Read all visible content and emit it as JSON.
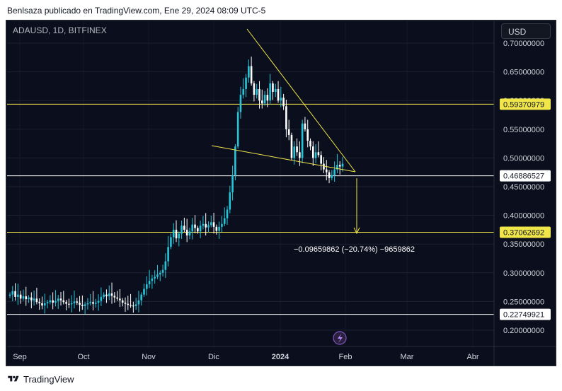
{
  "header": {
    "text": "Benlsaza publicado en TradingView.com, Ene 29, 2024 08:09 UTC-5"
  },
  "symbol": {
    "text": "ADAUSD, 1D, BITFINEX"
  },
  "currency_button": {
    "label": "USD"
  },
  "footer": {
    "brand": "TradingView"
  },
  "measure": {
    "label": "−0.09659862 (−20.74%) −9659862"
  },
  "colors": {
    "up": "#26c6da",
    "down": "#ffffff",
    "line": "#f0e64a",
    "bg": "#0b0e1c"
  },
  "chart_data": {
    "type": "candlestick",
    "title": "ADAUSD, 1D, BITFINEX",
    "ylim": [
      0.18,
      0.72
    ],
    "y_ticks": [
      "0.70000000",
      "0.65000000",
      "0.60000000",
      "0.55000000",
      "0.50000000",
      "0.45000000",
      "0.40000000",
      "0.35000000",
      "0.30000000",
      "0.25000000",
      "0.20000000"
    ],
    "x_ticks": [
      "Sep",
      "Oct",
      "Nov",
      "Dic",
      "2024",
      "Feb",
      "Mar",
      "Abr"
    ],
    "price_lines": [
      {
        "label": "0.59370979",
        "value": 0.5937,
        "color": "#f0e64a",
        "box": "yellow"
      },
      {
        "label": "0.46886527",
        "value": 0.4689,
        "color": "#ffffff",
        "box": "white"
      },
      {
        "label": "0.37062692",
        "value": 0.3706,
        "color": "#f0e64a",
        "box": "yellow"
      },
      {
        "label": "0.22749921",
        "value": 0.2275,
        "color": "#ffffff",
        "box": "white"
      }
    ],
    "closes": [
      0.262,
      0.268,
      0.258,
      0.262,
      0.255,
      0.259,
      0.254,
      0.257,
      0.252,
      0.255,
      0.249,
      0.247,
      0.243,
      0.247,
      0.249,
      0.252,
      0.248,
      0.251,
      0.255,
      0.252,
      0.249,
      0.246,
      0.245,
      0.247,
      0.25,
      0.248,
      0.244,
      0.242,
      0.245,
      0.247,
      0.249,
      0.246,
      0.248,
      0.251,
      0.258,
      0.262,
      0.259,
      0.264,
      0.26,
      0.257,
      0.255,
      0.252,
      0.248,
      0.246,
      0.244,
      0.243,
      0.242,
      0.245,
      0.252,
      0.262,
      0.272,
      0.28,
      0.286,
      0.29,
      0.293,
      0.297,
      0.3,
      0.305,
      0.32,
      0.345,
      0.362,
      0.375,
      0.36,
      0.368,
      0.382,
      0.375,
      0.365,
      0.372,
      0.384,
      0.378,
      0.372,
      0.382,
      0.385,
      0.379,
      0.383,
      0.388,
      0.38,
      0.373,
      0.38,
      0.385,
      0.395,
      0.41,
      0.44,
      0.47,
      0.52,
      0.58,
      0.61,
      0.62,
      0.64,
      0.66,
      0.63,
      0.61,
      0.62,
      0.6,
      0.595,
      0.61,
      0.6,
      0.63,
      0.615,
      0.62,
      0.6,
      0.605,
      0.59,
      0.55,
      0.54,
      0.5,
      0.52,
      0.51,
      0.5,
      0.56,
      0.55,
      0.53,
      0.52,
      0.5,
      0.51,
      0.505,
      0.49,
      0.48,
      0.475,
      0.465,
      0.47,
      0.48,
      0.488,
      0.485,
      0.49
    ]
  }
}
